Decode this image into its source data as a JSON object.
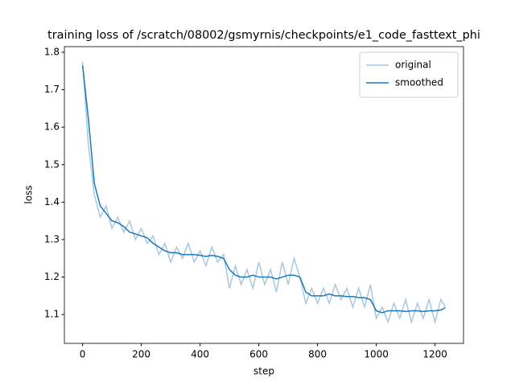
{
  "chart_data": {
    "type": "line",
    "title": "training loss of /scratch/08002/gsmyrnis/checkpoints/e1_code_fasttext_phi",
    "xlabel": "step",
    "ylabel": "loss",
    "x": [
      0,
      20,
      40,
      60,
      80,
      100,
      120,
      140,
      160,
      180,
      200,
      220,
      240,
      260,
      280,
      300,
      320,
      340,
      360,
      380,
      400,
      420,
      440,
      460,
      480,
      500,
      520,
      540,
      560,
      580,
      600,
      620,
      640,
      660,
      680,
      700,
      720,
      740,
      760,
      780,
      800,
      820,
      840,
      860,
      880,
      900,
      920,
      940,
      960,
      980,
      1000,
      1020,
      1040,
      1060,
      1080,
      1100,
      1120,
      1140,
      1160,
      1180,
      1200,
      1220,
      1235
    ],
    "series": [
      {
        "name": "original",
        "color": "#a6c8e0",
        "values": [
          1.775,
          1.55,
          1.42,
          1.36,
          1.39,
          1.33,
          1.36,
          1.32,
          1.35,
          1.3,
          1.33,
          1.29,
          1.31,
          1.26,
          1.29,
          1.24,
          1.28,
          1.25,
          1.29,
          1.24,
          1.27,
          1.23,
          1.28,
          1.24,
          1.26,
          1.17,
          1.23,
          1.18,
          1.22,
          1.17,
          1.24,
          1.18,
          1.22,
          1.16,
          1.24,
          1.18,
          1.25,
          1.2,
          1.13,
          1.17,
          1.13,
          1.17,
          1.13,
          1.18,
          1.14,
          1.17,
          1.12,
          1.17,
          1.12,
          1.18,
          1.09,
          1.12,
          1.08,
          1.13,
          1.09,
          1.14,
          1.08,
          1.13,
          1.09,
          1.14,
          1.08,
          1.14,
          1.12
        ]
      },
      {
        "name": "smoothed",
        "color": "#1f77b4",
        "values": [
          1.765,
          1.62,
          1.45,
          1.39,
          1.37,
          1.35,
          1.345,
          1.335,
          1.32,
          1.315,
          1.31,
          1.305,
          1.29,
          1.28,
          1.27,
          1.265,
          1.265,
          1.26,
          1.26,
          1.26,
          1.258,
          1.255,
          1.258,
          1.255,
          1.25,
          1.22,
          1.205,
          1.2,
          1.2,
          1.205,
          1.2,
          1.2,
          1.2,
          1.195,
          1.2,
          1.205,
          1.205,
          1.2,
          1.16,
          1.15,
          1.15,
          1.15,
          1.155,
          1.15,
          1.15,
          1.148,
          1.148,
          1.145,
          1.145,
          1.14,
          1.11,
          1.105,
          1.11,
          1.11,
          1.11,
          1.108,
          1.11,
          1.11,
          1.108,
          1.11,
          1.11,
          1.112,
          1.118
        ]
      }
    ],
    "xlim": [
      -62,
      1297
    ],
    "ylim": [
      1.023,
      1.815
    ],
    "xticks": [
      0,
      200,
      400,
      600,
      800,
      1000,
      1200
    ],
    "yticks": [
      1.1,
      1.2,
      1.3,
      1.4,
      1.5,
      1.6,
      1.7,
      1.8
    ],
    "legend": "upper right"
  }
}
